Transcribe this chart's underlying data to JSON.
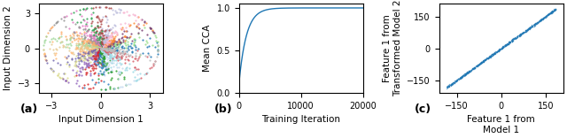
{
  "panel_a": {
    "xlabel": "Input Dimension 1",
    "ylabel": "Input Dimension 2",
    "xlim": [
      -3.8,
      3.8
    ],
    "ylim": [
      -3.8,
      3.8
    ],
    "xticks": [
      -3,
      0,
      3
    ],
    "yticks": [
      -3,
      0,
      3
    ],
    "n_classes": 24,
    "n_points": 80,
    "label": "(a)"
  },
  "panel_b": {
    "xlabel": "Training Iteration",
    "ylabel": "Mean CCA",
    "xlim": [
      0,
      20000
    ],
    "ylim": [
      0.0,
      1.05
    ],
    "xticks": [
      0,
      10000,
      20000
    ],
    "yticks": [
      0.0,
      0.5,
      1.0
    ],
    "line_color": "#1f77b4",
    "label": "(b)"
  },
  "panel_c": {
    "xlabel": "Feature 1 from\nModel 1",
    "ylabel": "Feature 1 from\nTransformed Model 2",
    "xlim": [
      -210,
      210
    ],
    "ylim": [
      -210,
      210
    ],
    "xticks": [
      -150,
      0,
      150
    ],
    "yticks": [
      -150,
      0,
      150
    ],
    "dot_color": "#1f77b4",
    "label": "(c)"
  },
  "background_color": "#ffffff",
  "label_fontsize": 9,
  "tick_fontsize": 7,
  "axis_label_fontsize": 7.5
}
